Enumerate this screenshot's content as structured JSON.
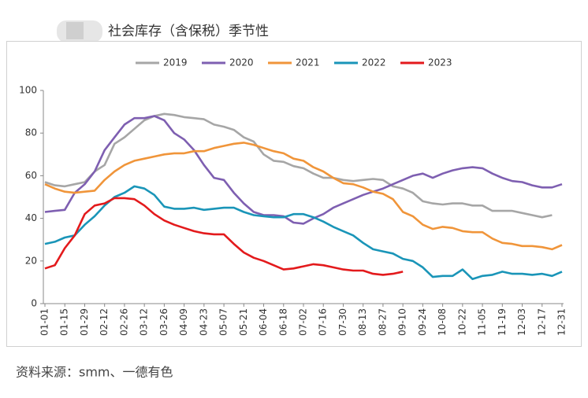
{
  "title": "社会库存（含保税）季节性",
  "source": "资料来源：smm、一德有色",
  "chart_data": {
    "type": "line",
    "categories": [
      "01-01",
      null,
      "01-15",
      null,
      "01-29",
      null,
      "02-12",
      null,
      "02-26",
      null,
      "03-12",
      null,
      "03-26",
      null,
      "04-09",
      null,
      "04-23",
      null,
      "05-07",
      null,
      "05-21",
      null,
      "06-04",
      null,
      "06-18",
      null,
      "07-02",
      null,
      "07-16",
      null,
      "07-30",
      null,
      "08-13",
      null,
      "08-27",
      null,
      "09-10",
      null,
      "09-24",
      null,
      "10-08",
      null,
      "10-22",
      null,
      "11-05",
      null,
      "11-19",
      null,
      "12-03",
      null,
      "12-17",
      null,
      "12-31"
    ],
    "ylim": [
      0,
      100
    ],
    "yticks": [
      0,
      20,
      40,
      60,
      80,
      100
    ],
    "grid": false,
    "legend": "top",
    "series": [
      {
        "name": "2019",
        "color": "#a6a6a6",
        "values": [
          57,
          55.5,
          55,
          56,
          57,
          62,
          65,
          75,
          78,
          82,
          86,
          88,
          89,
          88.5,
          87.5,
          87,
          86.5,
          84,
          83,
          81.5,
          78,
          76,
          70,
          67,
          66.5,
          64.5,
          63.5,
          61,
          59,
          59,
          58,
          57.5,
          58,
          58.5,
          58,
          55,
          54,
          52,
          48,
          47,
          46.5,
          47,
          47,
          46,
          46,
          43.5,
          43.5,
          43.5,
          42.5,
          41.5,
          40.5,
          41.5,
          null
        ]
      },
      {
        "name": "2020",
        "color": "#7e5fb1",
        "values": [
          43,
          43.5,
          44,
          52,
          56,
          62,
          72,
          78,
          84,
          87,
          87,
          88,
          86,
          80,
          77,
          72,
          65,
          59,
          58,
          52,
          47,
          43,
          41.5,
          41.5,
          41,
          38,
          37.5,
          40,
          42,
          45,
          47,
          49,
          51,
          52.5,
          54,
          56,
          58,
          60,
          61,
          59,
          61,
          62.5,
          63.5,
          64,
          63.5,
          61,
          59,
          57.5,
          57,
          55.5,
          54.5,
          54.5,
          56
        ]
      },
      {
        "name": "2021",
        "color": "#f0953a",
        "values": [
          56,
          54,
          52.5,
          52,
          52.5,
          53,
          58,
          62,
          65,
          67,
          68,
          69,
          70,
          70.5,
          70.5,
          71.5,
          71.5,
          73,
          74,
          75,
          75.5,
          74.5,
          73,
          71.5,
          70.5,
          68,
          67,
          64,
          62,
          59,
          56.5,
          56,
          54.5,
          52.5,
          51.5,
          49,
          43,
          41,
          37,
          35,
          36,
          35.5,
          34,
          33.5,
          33.5,
          30.5,
          28.5,
          28,
          27,
          27,
          26.5,
          25.5,
          27.5
        ]
      },
      {
        "name": "2022",
        "color": "#1a95b8",
        "values": [
          28,
          29,
          31,
          32,
          37,
          41,
          46,
          50,
          52,
          55,
          54,
          51,
          45.5,
          44.5,
          44.5,
          45,
          44,
          44.5,
          45,
          45,
          43,
          41.5,
          41,
          40.5,
          40.5,
          42,
          42,
          40.5,
          38.5,
          36,
          34,
          32,
          28.5,
          25.5,
          24.5,
          23.5,
          21,
          20,
          17,
          12.5,
          13,
          13,
          16,
          11.5,
          13,
          13.5,
          15,
          14,
          14,
          13.5,
          14,
          13,
          15
        ]
      },
      {
        "name": "2023",
        "color": "#e31a1c",
        "values": [
          16.5,
          18,
          26,
          32,
          42,
          46,
          47,
          49.5,
          49.5,
          49,
          46,
          42,
          39,
          37,
          35.5,
          34,
          33,
          32.5,
          32.5,
          28,
          24,
          21.5,
          20,
          18,
          16,
          16.5,
          17.5,
          18.5,
          18,
          17,
          16,
          15.5,
          15.5,
          14,
          13.5,
          14,
          15,
          null,
          null,
          null,
          null,
          null,
          null,
          null,
          null,
          null,
          null,
          null,
          null,
          null,
          null,
          null,
          null
        ]
      }
    ]
  }
}
